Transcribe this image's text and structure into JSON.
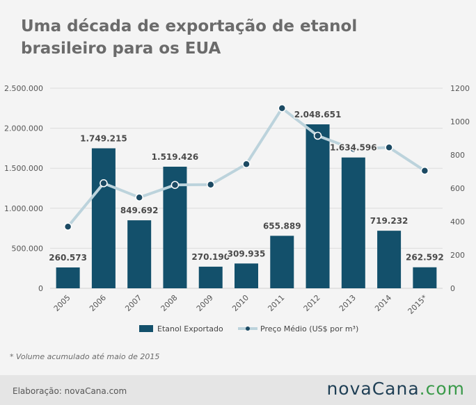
{
  "title_line1": "Uma década de exportação de etanol",
  "title_line2": "brasileiro para os EUA",
  "footnote": "* Volume acumulado até maio de 2015",
  "credit": "Elaboração: novaCana.com",
  "logo": {
    "main": "novaCana",
    "suffix": ".com"
  },
  "chart_data": {
    "type": "bar",
    "categories": [
      "2005",
      "2006",
      "2007",
      "2008",
      "2009",
      "2010",
      "2011",
      "2012",
      "2013",
      "2014",
      "2015*"
    ],
    "series": [
      {
        "name": "Etanol Exportado",
        "type": "bar",
        "axis": "left",
        "color": "#13506b",
        "values": [
          260573,
          1749215,
          849692,
          1519426,
          270190,
          309935,
          655889,
          2048651,
          1634596,
          719232,
          262592
        ],
        "labels": [
          "260.573",
          "1.749.215",
          "849.692",
          "1.519.426",
          "270.190",
          "309.935",
          "655.889",
          "2.048.651",
          "1.634.596",
          "719.232",
          "262.592"
        ]
      },
      {
        "name": "Preço Médio (US$ por m³)",
        "type": "line",
        "axis": "right",
        "color": "#bcd3dc",
        "marker_color": "#1c4a63",
        "values": [
          370,
          630,
          545,
          620,
          622,
          745,
          1080,
          915,
          835,
          845,
          705
        ]
      }
    ],
    "y_left": {
      "min": 0,
      "max": 2500000,
      "ticks": [
        0,
        500000,
        1000000,
        1500000,
        2000000,
        2500000
      ],
      "tick_labels": [
        "0",
        "500.000",
        "1.000.000",
        "1.500.000",
        "2.000.000",
        "2.500.000"
      ]
    },
    "y_right": {
      "min": 0,
      "max": 1200,
      "ticks": [
        0,
        200,
        400,
        600,
        800,
        1000,
        1200
      ],
      "tick_labels": [
        "0",
        "200",
        "400",
        "600",
        "800",
        "1000",
        "1200"
      ]
    },
    "grid": true,
    "legend_position": "bottom"
  }
}
